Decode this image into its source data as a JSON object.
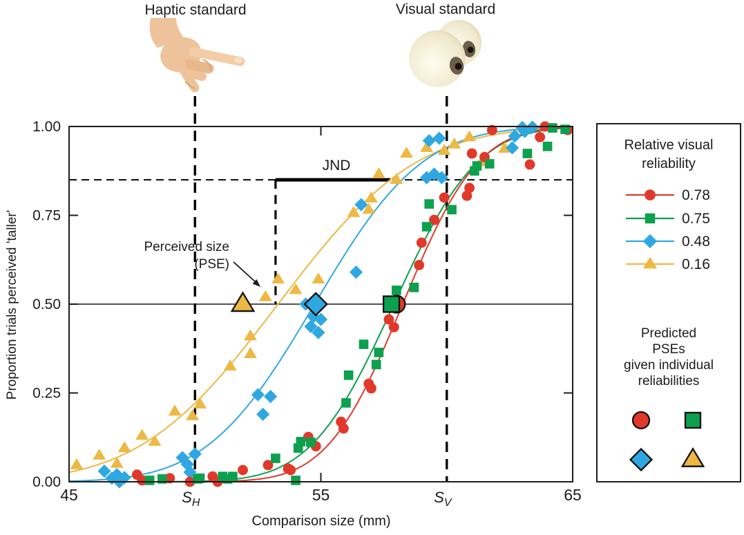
{
  "figure": {
    "haptic_label": "Haptic standard",
    "visual_label": "Visual standard"
  },
  "annotations": {
    "jnd_label": "JND",
    "pse_label_line1": "Perceived size",
    "pse_label_line2": "(PSE)"
  },
  "legend": {
    "title_lines": [
      "Relative visual",
      "reliability"
    ],
    "predicted_lines": [
      "Predicted",
      "PSEs",
      "given individual",
      "reliabilities"
    ]
  },
  "chart_data": {
    "type": "scatter",
    "title": "",
    "xlabel": "Comparison size (mm)",
    "ylabel": "Proportion trials perceived 'taller'",
    "xlim": [
      45,
      65
    ],
    "ylim": [
      0,
      1
    ],
    "grid": false,
    "x_ticks": [
      {
        "value": 45,
        "label": "45"
      },
      {
        "value": 55,
        "label": "55"
      },
      {
        "value": 65,
        "label": "65"
      }
    ],
    "x_standard_ticks": [
      {
        "value": 50,
        "label": "S",
        "subscript": "H",
        "name": "haptic-standard"
      },
      {
        "value": 60,
        "label": "S",
        "subscript": "V",
        "name": "visual-standard"
      }
    ],
    "y_ticks": [
      {
        "value": 0,
        "label": "0.00"
      },
      {
        "value": 0.25,
        "label": "0.25"
      },
      {
        "value": 0.5,
        "label": "0.50"
      },
      {
        "value": 0.75,
        "label": "0.75"
      },
      {
        "value": 1,
        "label": "1.00"
      }
    ],
    "reference_levels": {
      "pse": 0.5,
      "jnd": 0.85
    },
    "jnd_bar": {
      "x1": 53.2,
      "x2": 57.75,
      "level": 0.85
    },
    "pse_dropline_x": 53.2,
    "series": [
      {
        "name": "0.78",
        "color": "#e0392b",
        "marker": "circle",
        "curve": {
          "type": "cumulative-gaussian",
          "mu": 58.25,
          "sigma": 2.35
        },
        "predicted_pse": 58.0,
        "points": [
          [
            47.7,
            0.02
          ],
          [
            47.9,
            0.004
          ],
          [
            49.0,
            0.01
          ],
          [
            49.8,
            0.0
          ],
          [
            50.7,
            0.015
          ],
          [
            50.9,
            0.0
          ],
          [
            51.9,
            0.033
          ],
          [
            52.9,
            0.047
          ],
          [
            53.7,
            0.037
          ],
          [
            53.8,
            0.033
          ],
          [
            54.5,
            0.126
          ],
          [
            54.8,
            0.1
          ],
          [
            55.8,
            0.169
          ],
          [
            55.9,
            0.15
          ],
          [
            56.9,
            0.276
          ],
          [
            57.0,
            0.263
          ],
          [
            57.7,
            0.457
          ],
          [
            57.9,
            0.435
          ],
          [
            58.9,
            0.61
          ],
          [
            59.0,
            0.673
          ],
          [
            59.5,
            0.737
          ],
          [
            59.9,
            0.8
          ],
          [
            60.8,
            0.805
          ],
          [
            60.9,
            0.827
          ],
          [
            61.0,
            0.924
          ],
          [
            61.5,
            0.914
          ],
          [
            61.8,
            0.99
          ],
          [
            63.3,
            0.893
          ],
          [
            63.7,
            0.97
          ],
          [
            63.9,
            1.0
          ],
          [
            64.8,
            0.99
          ]
        ]
      },
      {
        "name": "0.75",
        "color": "#0da04e",
        "marker": "square",
        "curve": {
          "type": "cumulative-gaussian",
          "mu": 57.9,
          "sigma": 2.6
        },
        "predicted_pse": 57.8,
        "points": [
          [
            48.2,
            0.004
          ],
          [
            48.7,
            0.008
          ],
          [
            50.1,
            0.008
          ],
          [
            50.2,
            0.01
          ],
          [
            51.1,
            0.015
          ],
          [
            51.3,
            0.008
          ],
          [
            51.5,
            0.015
          ],
          [
            53.2,
            0.066
          ],
          [
            54.0,
            0.004
          ],
          [
            54.1,
            0.095
          ],
          [
            54.2,
            0.113
          ],
          [
            54.6,
            0.111
          ],
          [
            56.0,
            0.222
          ],
          [
            56.1,
            0.3
          ],
          [
            56.7,
            0.387
          ],
          [
            57.2,
            0.33
          ],
          [
            57.3,
            0.364
          ],
          [
            58.0,
            0.539
          ],
          [
            58.7,
            0.547
          ],
          [
            59.2,
            0.718
          ],
          [
            59.3,
            0.782
          ],
          [
            60.2,
            0.766
          ],
          [
            61.1,
            0.875
          ],
          [
            61.2,
            0.889
          ],
          [
            61.7,
            0.895
          ],
          [
            63.2,
            0.924
          ],
          [
            64.0,
            0.944
          ],
          [
            64.2,
            0.996
          ],
          [
            64.7,
            0.992
          ]
        ]
      },
      {
        "name": "0.48",
        "color": "#2fa8e1",
        "marker": "diamond",
        "curve": {
          "type": "cumulative-gaussian",
          "mu": 54.75,
          "sigma": 3.35
        },
        "predicted_pse": 54.8,
        "points": [
          [
            46.4,
            0.03
          ],
          [
            46.7,
            0.01
          ],
          [
            46.9,
            0.02
          ],
          [
            47.0,
            0.0
          ],
          [
            47.2,
            0.012
          ],
          [
            49.5,
            0.068
          ],
          [
            49.7,
            0.049
          ],
          [
            49.8,
            0.027
          ],
          [
            50.0,
            0.078
          ],
          [
            52.5,
            0.245
          ],
          [
            52.7,
            0.19
          ],
          [
            53.0,
            0.24
          ],
          [
            54.4,
            0.5
          ],
          [
            54.7,
            0.465
          ],
          [
            54.6,
            0.437
          ],
          [
            55.0,
            0.457
          ],
          [
            54.9,
            0.42
          ],
          [
            56.4,
            0.59
          ],
          [
            56.6,
            0.78
          ],
          [
            59.2,
            0.856
          ],
          [
            59.3,
            0.96
          ],
          [
            59.5,
            0.866
          ],
          [
            59.7,
            0.967
          ],
          [
            59.8,
            0.856
          ],
          [
            62.6,
            0.94
          ],
          [
            62.7,
            0.973
          ],
          [
            63.0,
            0.997
          ],
          [
            63.1,
            0.986
          ],
          [
            63.4,
            0.998
          ]
        ]
      },
      {
        "name": "0.16",
        "color": "#edb843",
        "marker": "triangle",
        "curve": {
          "type": "cumulative-gaussian",
          "mu": 53.3,
          "sigma": 4.3
        },
        "predicted_pse": 51.9,
        "points": [
          [
            45.3,
            0.047
          ],
          [
            46.2,
            0.074
          ],
          [
            46.9,
            0.051
          ],
          [
            47.2,
            0.095
          ],
          [
            47.9,
            0.13
          ],
          [
            48.4,
            0.113
          ],
          [
            49.2,
            0.198
          ],
          [
            49.9,
            0.185
          ],
          [
            50.2,
            0.218
          ],
          [
            51.4,
            0.325
          ],
          [
            52.2,
            0.36
          ],
          [
            52.2,
            0.41
          ],
          [
            52.8,
            0.52
          ],
          [
            53.3,
            0.57
          ],
          [
            54.0,
            0.54
          ],
          [
            54.9,
            0.57
          ],
          [
            56.3,
            0.757
          ],
          [
            56.9,
            0.766
          ],
          [
            57.0,
            0.798
          ],
          [
            57.3,
            0.866
          ],
          [
            58.0,
            0.85
          ],
          [
            58.4,
            0.924
          ],
          [
            59.2,
            0.94
          ],
          [
            59.9,
            0.932
          ],
          [
            60.3,
            0.95
          ],
          [
            60.9,
            0.97
          ],
          [
            61.4,
            0.9
          ],
          [
            62.3,
            0.938
          ]
        ]
      }
    ]
  }
}
